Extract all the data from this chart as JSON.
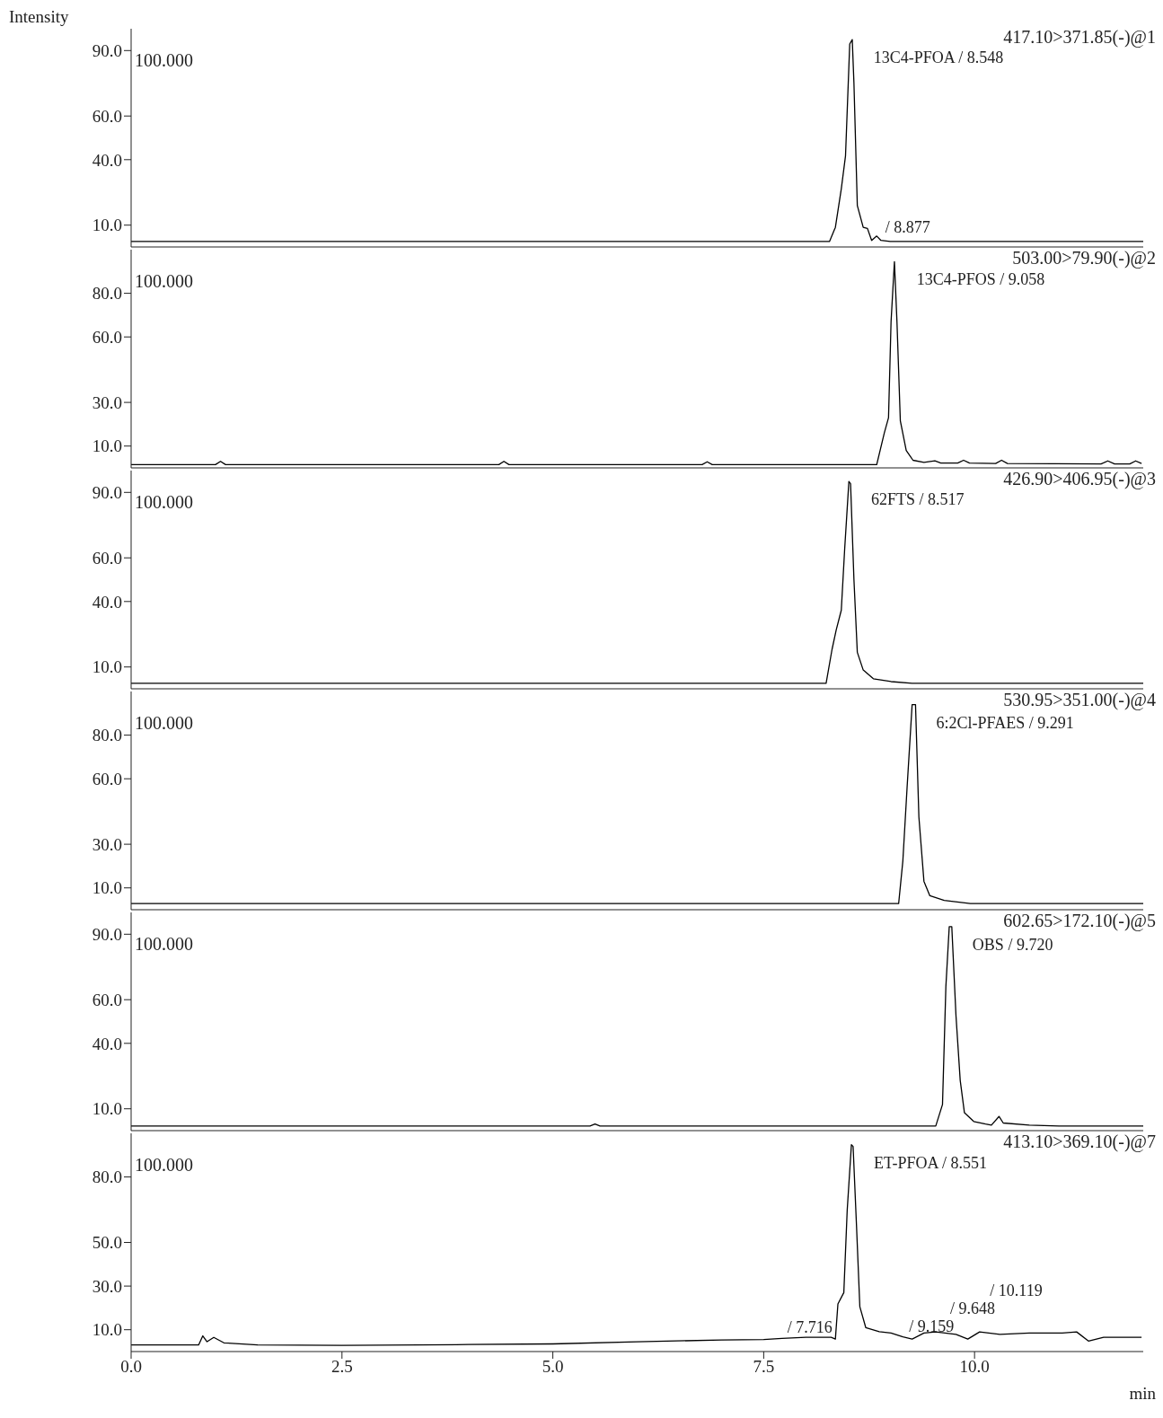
{
  "chart_data": [
    {
      "type": "line",
      "ylabel": "Intensity",
      "color": "#000000",
      "xlim": [
        0,
        12
      ],
      "ylim": [
        0,
        100
      ],
      "tick_labels": "y",
      "yticks": [
        {
          "value": 10,
          "label": "10.0"
        },
        {
          "value": 40,
          "label": "40.0"
        },
        {
          "value": 60,
          "label": "60.0"
        },
        {
          "value": 90,
          "label": "90.0"
        }
      ],
      "x": [
        0,
        2,
        4,
        6,
        8,
        8.28,
        8.35,
        8.42,
        8.47,
        8.52,
        8.55,
        8.57,
        8.61,
        8.68,
        8.73,
        8.78,
        8.84,
        8.89,
        9.0,
        10,
        11,
        12
      ],
      "values": [
        2.5,
        2.5,
        2.5,
        2.5,
        2.5,
        2.5,
        9,
        26.6,
        41.7,
        93,
        95,
        75,
        19,
        9,
        8.5,
        3,
        5,
        3,
        2.5,
        2.5,
        2.5,
        2.5
      ],
      "annotations": [
        "100.000",
        "417.10>371.85(-)@1",
        {
          "text": "13C4-PFOA / 8.548",
          "x": 8.548,
          "y": 95
        },
        {
          "text": "/ 8.877",
          "x": 8.877,
          "y": 4
        }
      ]
    },
    {
      "type": "line",
      "color": "#000000",
      "xlim": [
        0,
        12
      ],
      "ylim": [
        0,
        100
      ],
      "tick_labels": "y",
      "yticks": [
        {
          "value": 10,
          "label": "10.0"
        },
        {
          "value": 30,
          "label": "30.0"
        },
        {
          "value": 60,
          "label": "60.0"
        },
        {
          "value": 80,
          "label": "80.0"
        }
      ],
      "x": [
        0,
        1.0,
        1.06,
        1.12,
        4.36,
        4.42,
        4.48,
        6.77,
        6.83,
        6.89,
        8.84,
        8.93,
        8.98,
        9.01,
        9.05,
        9.08,
        9.12,
        9.19,
        9.27,
        9.4,
        9.53,
        9.6,
        9.8,
        9.87,
        9.94,
        10.25,
        10.32,
        10.39,
        11.5,
        11.58,
        11.66,
        11.84,
        11.91,
        11.98
      ],
      "values": [
        1.5,
        1.5,
        3,
        1.5,
        1.5,
        3,
        1.5,
        1.5,
        2.8,
        1.5,
        1.5,
        16,
        23,
        67,
        94.5,
        67,
        21.6,
        8,
        3.5,
        2.5,
        3.2,
        2.2,
        2.2,
        3.5,
        2.2,
        2,
        3.5,
        2,
        1.8,
        3.2,
        1.8,
        1.8,
        3.2,
        2
      ],
      "annotations": [
        "100.000",
        "503.00>79.90(-)@2",
        {
          "text": "13C4-PFOS / 9.058",
          "x": 9.058,
          "y": 94.5
        }
      ]
    },
    {
      "type": "line",
      "color": "#000000",
      "xlim": [
        0,
        12
      ],
      "ylim": [
        0,
        100
      ],
      "tick_labels": "y",
      "yticks": [
        {
          "value": 10,
          "label": "10.0"
        },
        {
          "value": 40,
          "label": "40.0"
        },
        {
          "value": 60,
          "label": "60.0"
        },
        {
          "value": 90,
          "label": "90.0"
        }
      ],
      "x": [
        0,
        2,
        4,
        6,
        8,
        8.24,
        8.31,
        8.36,
        8.42,
        8.46,
        8.51,
        8.53,
        8.57,
        8.61,
        8.68,
        8.8,
        9.01,
        9.26,
        10,
        11,
        12
      ],
      "values": [
        2.5,
        2.5,
        2.5,
        2.5,
        2.5,
        2.5,
        18,
        27,
        36,
        64,
        95,
        94,
        50,
        16.7,
        8.6,
        4.6,
        3.3,
        2.5,
        2.5,
        2.5,
        2.5
      ],
      "annotations": [
        "100.000",
        "426.90>406.95(-)@3",
        {
          "text": "62FTS / 8.517",
          "x": 8.517,
          "y": 95
        }
      ]
    },
    {
      "type": "line",
      "color": "#000000",
      "xlim": [
        0,
        12
      ],
      "ylim": [
        0,
        100
      ],
      "tick_labels": "y",
      "yticks": [
        {
          "value": 10,
          "label": "10.0"
        },
        {
          "value": 30,
          "label": "30.0"
        },
        {
          "value": 60,
          "label": "60.0"
        },
        {
          "value": 80,
          "label": "80.0"
        }
      ],
      "x": [
        0,
        2,
        4,
        6,
        8,
        9.1,
        9.15,
        9.2,
        9.26,
        9.3,
        9.34,
        9.4,
        9.47,
        9.64,
        9.95,
        11,
        12
      ],
      "values": [
        2.8,
        2.8,
        2.8,
        2.8,
        2.8,
        2.8,
        22.4,
        56,
        94,
        94,
        42.5,
        13,
        6.4,
        4.3,
        2.8,
        2.8,
        2.8
      ],
      "annotations": [
        "100.000",
        "530.95>351.00(-)@4",
        {
          "text": "6:2Cl-PFAES / 9.291",
          "x": 9.291,
          "y": 94
        }
      ]
    },
    {
      "type": "line",
      "color": "#000000",
      "xlim": [
        0,
        12
      ],
      "ylim": [
        0,
        100
      ],
      "tick_labels": "y",
      "yticks": [
        {
          "value": 10,
          "label": "10.0"
        },
        {
          "value": 40,
          "label": "40.0"
        },
        {
          "value": 60,
          "label": "60.0"
        },
        {
          "value": 90,
          "label": "90.0"
        }
      ],
      "x": [
        0,
        2,
        4,
        5.44,
        5.5,
        5.56,
        8,
        9.54,
        9.62,
        9.66,
        9.7,
        9.73,
        9.78,
        9.83,
        9.88,
        9.99,
        10.13,
        10.2,
        10.29,
        10.34,
        10.65,
        11,
        12
      ],
      "values": [
        2.1,
        2.1,
        2.1,
        2.1,
        3,
        2.1,
        2.1,
        2.1,
        12,
        66,
        93.5,
        93.5,
        52.6,
        23,
        8.2,
        4.2,
        3,
        2.5,
        6.5,
        3.5,
        2.5,
        2.1,
        2.1
      ],
      "annotations": [
        "100.000",
        "602.65>172.10(-)@5",
        {
          "text": "OBS / 9.720",
          "x": 9.72,
          "y": 93.5
        }
      ]
    },
    {
      "type": "line",
      "color": "#000000",
      "xlim": [
        0,
        12
      ],
      "ylim": [
        0,
        100
      ],
      "xlabel": "min",
      "xticks": [
        {
          "value": 0,
          "label": "0.0"
        },
        {
          "value": 2.5,
          "label": "2.5"
        },
        {
          "value": 5,
          "label": "5.0"
        },
        {
          "value": 7.5,
          "label": "7.5"
        },
        {
          "value": 10,
          "label": "10.0"
        }
      ],
      "yticks": [
        {
          "value": 10,
          "label": "10.0"
        },
        {
          "value": 30,
          "label": "30.0"
        },
        {
          "value": 50,
          "label": "50.0"
        },
        {
          "value": 80,
          "label": "80.0"
        }
      ],
      "x": [
        0,
        0.5,
        0.8,
        0.85,
        0.9,
        0.98,
        1.1,
        1.5,
        2.5,
        4,
        5,
        6,
        7,
        7.5,
        7.716,
        8.0,
        8.3,
        8.35,
        8.38,
        8.45,
        8.49,
        8.54,
        8.56,
        8.6,
        8.64,
        8.71,
        8.87,
        9.01,
        9.15,
        9.26,
        9.4,
        9.54,
        9.78,
        9.92,
        10.06,
        10.3,
        10.65,
        11.04,
        11.21,
        11.35,
        11.53,
        11.98
      ],
      "values": [
        3,
        3,
        3,
        7.2,
        4.5,
        6.5,
        4,
        3,
        2.8,
        3.2,
        3.5,
        4.5,
        5.3,
        5.5,
        6,
        6.5,
        6.5,
        5.7,
        21.8,
        27,
        64.7,
        94.8,
        94,
        58,
        20.5,
        11,
        9.1,
        8.5,
        6.7,
        5.7,
        8.5,
        9,
        7.9,
        5.7,
        9,
        7.9,
        8.5,
        8.5,
        9,
        4.8,
        6.5,
        6.5
      ],
      "annotations": [
        "100.000",
        "413.10>369.10(-)@7",
        {
          "text": "ET-PFOA / 8.551",
          "x": 8.551,
          "y": 94.8
        },
        {
          "text": "/ 7.716",
          "x": 7.716,
          "y": 6
        },
        {
          "text": "/ 9.159",
          "x": 9.159,
          "y": 6.7
        },
        {
          "text": "/ 9.648",
          "x": 9.648,
          "y": 8
        },
        {
          "text": "/ 10.119",
          "x": 10.119,
          "y": 9
        }
      ]
    }
  ]
}
